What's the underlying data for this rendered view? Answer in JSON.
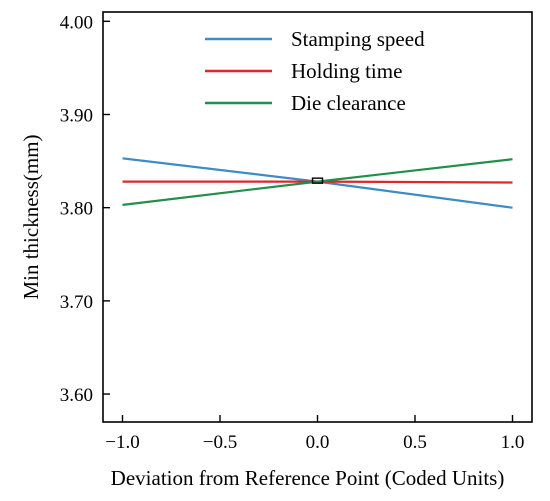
{
  "chart_data": {
    "type": "line",
    "title": "",
    "xlabel": "Deviation from Reference Point (Coded Units)",
    "ylabel": "Min thickness(mm)",
    "xlim": [
      -1.1,
      1.1
    ],
    "ylim": [
      3.57,
      4.01
    ],
    "xticks": [
      -1.0,
      -0.5,
      0.0,
      0.5,
      1.0
    ],
    "xtick_labels": [
      "−1.0",
      "−0.5",
      "0.0",
      "0.5",
      "1.0"
    ],
    "yticks": [
      3.6,
      3.7,
      3.8,
      3.9,
      4.0
    ],
    "ytick_labels": [
      "3.60",
      "3.70",
      "3.80",
      "3.90",
      "4.00"
    ],
    "grid": false,
    "legend": "top-right",
    "reference_point": {
      "x": 0.0,
      "y": 3.829
    },
    "series": [
      {
        "name": "Stamping speed",
        "color": "#3d8cc4",
        "x": [
          -1.0,
          0.0,
          1.0
        ],
        "y": [
          3.853,
          3.828,
          3.8
        ]
      },
      {
        "name": "Holding time",
        "color": "#e0262a",
        "x": [
          -1.0,
          0.0,
          1.0
        ],
        "y": [
          3.828,
          3.828,
          3.827
        ]
      },
      {
        "name": "Die clearance",
        "color": "#1f8f4a",
        "x": [
          -1.0,
          0.0,
          1.0
        ],
        "y": [
          3.803,
          3.828,
          3.852
        ]
      }
    ]
  }
}
